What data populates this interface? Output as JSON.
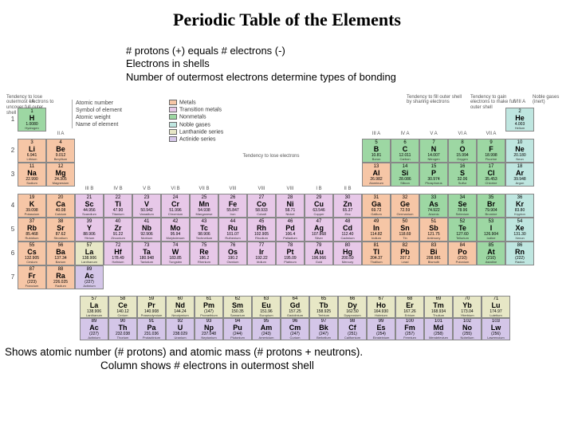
{
  "title": "Periodic Table of the Elements",
  "notes_top": [
    "# protons (+) equals # electrons (-)",
    "Electrons in shells",
    "Number of outermost electrons determine types of bonding"
  ],
  "side_notes": {
    "left": "Tendency to lose outermost electrons to uncover full outer shell",
    "right1": "Tendency to fill outer shell by sharing electrons",
    "right2": "Tendency to gain electrons to make full outer shell",
    "noble": "Noble gases (inert)",
    "mid": "Tendency to lose electrons"
  },
  "element_key_lines": [
    "Atomic number",
    "Symbol of element",
    "Atomic weight",
    "Name of element"
  ],
  "legend": [
    {
      "label": "Metals",
      "color": "#f6c6a6"
    },
    {
      "label": "Transition metals",
      "color": "#e7c8e8"
    },
    {
      "label": "Nonmetals",
      "color": "#9dd7a3"
    },
    {
      "label": "Noble gases",
      "color": "#bfe6e0"
    },
    {
      "label": "Lanthanide series",
      "color": "#e7e7c6"
    },
    {
      "label": "Actinide series",
      "color": "#d4c6e8"
    }
  ],
  "colors": {
    "metal": "#f6c6a6",
    "trans": "#e7c8e8",
    "nonmetal": "#9dd7a3",
    "noble": "#bfe6e0",
    "lanth": "#e7e7c6",
    "act": "#d4c6e8",
    "metal_alt": "#f0b48c",
    "nonmetal_alt": "#b8e2a8",
    "cell_border": "#888888",
    "bg": "#ffffff"
  },
  "group_labels_top": [
    "I A"
  ],
  "group_labels_r1_right": [
    "VIII A"
  ],
  "group_labels_r2": [
    "II A",
    "III A",
    "IV A",
    "V A",
    "VI A",
    "VII A"
  ],
  "group_labels_r4": [
    "III B",
    "IV B",
    "V B",
    "VI B",
    "VII B",
    "VIII",
    "VIII",
    "VIII",
    "I B",
    "II B"
  ],
  "footer": [
    "Shows atomic number (# protons) and atomic mass (# protons + neutrons).",
    "Column shows # electrons in outermost shell"
  ],
  "main_rows": [
    [
      {
        "n": 1,
        "s": "H",
        "w": "1.0080",
        "nm": "Hydrogen",
        "c": "nonmetal"
      },
      null,
      null,
      null,
      null,
      null,
      null,
      null,
      null,
      null,
      null,
      null,
      null,
      null,
      null,
      null,
      null,
      {
        "n": 2,
        "s": "He",
        "w": "4.003",
        "nm": "Helium",
        "c": "noble"
      }
    ],
    [
      {
        "n": 3,
        "s": "Li",
        "w": "6.941",
        "nm": "Lithium",
        "c": "metal"
      },
      {
        "n": 4,
        "s": "Be",
        "w": "9.012",
        "nm": "Beryllium",
        "c": "metal"
      },
      null,
      null,
      null,
      null,
      null,
      null,
      null,
      null,
      null,
      null,
      {
        "n": 5,
        "s": "B",
        "w": "10.81",
        "nm": "Boron",
        "c": "nonmetal"
      },
      {
        "n": 6,
        "s": "C",
        "w": "12.011",
        "nm": "Carbon",
        "c": "nonmetal"
      },
      {
        "n": 7,
        "s": "N",
        "w": "14.007",
        "nm": "Nitrogen",
        "c": "nonmetal"
      },
      {
        "n": 8,
        "s": "O",
        "w": "15.994",
        "nm": "Oxygen",
        "c": "nonmetal"
      },
      {
        "n": 9,
        "s": "F",
        "w": "18.998",
        "nm": "Fluorine",
        "c": "nonmetal"
      },
      {
        "n": 10,
        "s": "Ne",
        "w": "20.180",
        "nm": "Neon",
        "c": "noble"
      }
    ],
    [
      {
        "n": 11,
        "s": "Na",
        "w": "22.990",
        "nm": "Sodium",
        "c": "metal"
      },
      {
        "n": 12,
        "s": "Mg",
        "w": "24.305",
        "nm": "Magnesium",
        "c": "metal"
      },
      null,
      null,
      null,
      null,
      null,
      null,
      null,
      null,
      null,
      null,
      {
        "n": 13,
        "s": "Al",
        "w": "26.982",
        "nm": "Aluminum",
        "c": "metal"
      },
      {
        "n": 14,
        "s": "Si",
        "w": "28.086",
        "nm": "Silicon",
        "c": "nonmetal"
      },
      {
        "n": 15,
        "s": "P",
        "w": "30.974",
        "nm": "Phosphorus",
        "c": "nonmetal"
      },
      {
        "n": 16,
        "s": "S",
        "w": "32.06",
        "nm": "Sulfur",
        "c": "nonmetal"
      },
      {
        "n": 17,
        "s": "Cl",
        "w": "35.453",
        "nm": "Chlorine",
        "c": "nonmetal"
      },
      {
        "n": 18,
        "s": "Ar",
        "w": "39.948",
        "nm": "Argon",
        "c": "noble"
      }
    ],
    [
      {
        "n": 19,
        "s": "K",
        "w": "39.098",
        "nm": "Potassium",
        "c": "metal"
      },
      {
        "n": 20,
        "s": "Ca",
        "w": "40.08",
        "nm": "Calcium",
        "c": "metal"
      },
      {
        "n": 21,
        "s": "Sc",
        "w": "44.956",
        "nm": "Scandium",
        "c": "trans"
      },
      {
        "n": 22,
        "s": "Ti",
        "w": "47.90",
        "nm": "Titanium",
        "c": "trans"
      },
      {
        "n": 23,
        "s": "V",
        "w": "50.942",
        "nm": "Vanadium",
        "c": "trans"
      },
      {
        "n": 24,
        "s": "Cr",
        "w": "51.996",
        "nm": "Chromium",
        "c": "trans"
      },
      {
        "n": 25,
        "s": "Mn",
        "w": "54.938",
        "nm": "Manganese",
        "c": "trans"
      },
      {
        "n": 26,
        "s": "Fe",
        "w": "55.847",
        "nm": "Iron",
        "c": "trans"
      },
      {
        "n": 27,
        "s": "Co",
        "w": "58.933",
        "nm": "Cobalt",
        "c": "trans"
      },
      {
        "n": 28,
        "s": "Ni",
        "w": "58.71",
        "nm": "Nickel",
        "c": "trans"
      },
      {
        "n": 29,
        "s": "Cu",
        "w": "63.546",
        "nm": "Copper",
        "c": "trans"
      },
      {
        "n": 30,
        "s": "Zn",
        "w": "65.37",
        "nm": "Zinc",
        "c": "trans"
      },
      {
        "n": 31,
        "s": "Ga",
        "w": "69.72",
        "nm": "Gallium",
        "c": "metal"
      },
      {
        "n": 32,
        "s": "Ge",
        "w": "72.59",
        "nm": "Germanium",
        "c": "metal"
      },
      {
        "n": 33,
        "s": "As",
        "w": "74.922",
        "nm": "Arsenic",
        "c": "nonmetal"
      },
      {
        "n": 34,
        "s": "Se",
        "w": "78.96",
        "nm": "Selenium",
        "c": "nonmetal"
      },
      {
        "n": 35,
        "s": "Br",
        "w": "79.904",
        "nm": "Bromine",
        "c": "nonmetal"
      },
      {
        "n": 36,
        "s": "Kr",
        "w": "83.80",
        "nm": "Krypton",
        "c": "noble"
      }
    ],
    [
      {
        "n": 37,
        "s": "Rb",
        "w": "85.468",
        "nm": "Rubidium",
        "c": "metal"
      },
      {
        "n": 38,
        "s": "Sr",
        "w": "87.62",
        "nm": "Strontium",
        "c": "metal"
      },
      {
        "n": 39,
        "s": "Y",
        "w": "88.906",
        "nm": "Yttrium",
        "c": "trans"
      },
      {
        "n": 40,
        "s": "Zr",
        "w": "91.22",
        "nm": "Zirconium",
        "c": "trans"
      },
      {
        "n": 41,
        "s": "Nb",
        "w": "92.906",
        "nm": "Niobium",
        "c": "trans"
      },
      {
        "n": 42,
        "s": "Mo",
        "w": "95.94",
        "nm": "Molybdenum",
        "c": "trans"
      },
      {
        "n": 43,
        "s": "Tc",
        "w": "98.906",
        "nm": "Technetium",
        "c": "trans"
      },
      {
        "n": 44,
        "s": "Ru",
        "w": "101.07",
        "nm": "Ruthenium",
        "c": "trans"
      },
      {
        "n": 45,
        "s": "Rh",
        "w": "102.905",
        "nm": "Rhodium",
        "c": "trans"
      },
      {
        "n": 46,
        "s": "Pd",
        "w": "106.4",
        "nm": "Palladium",
        "c": "trans"
      },
      {
        "n": 47,
        "s": "Ag",
        "w": "107.868",
        "nm": "Silver",
        "c": "trans"
      },
      {
        "n": 48,
        "s": "Cd",
        "w": "112.40",
        "nm": "Cadmium",
        "c": "trans"
      },
      {
        "n": 49,
        "s": "In",
        "w": "114.82",
        "nm": "Indium",
        "c": "metal"
      },
      {
        "n": 50,
        "s": "Sn",
        "w": "118.69",
        "nm": "Tin",
        "c": "metal"
      },
      {
        "n": 51,
        "s": "Sb",
        "w": "121.75",
        "nm": "Antimony",
        "c": "metal"
      },
      {
        "n": 52,
        "s": "Te",
        "w": "127.60",
        "nm": "Tellurium",
        "c": "nonmetal"
      },
      {
        "n": 53,
        "s": "I",
        "w": "126.904",
        "nm": "Iodine",
        "c": "nonmetal"
      },
      {
        "n": 54,
        "s": "Xe",
        "w": "131.30",
        "nm": "Xenon",
        "c": "noble"
      }
    ],
    [
      {
        "n": 55,
        "s": "Cs",
        "w": "132.905",
        "nm": "Cesium",
        "c": "metal"
      },
      {
        "n": 56,
        "s": "Ba",
        "w": "137.34",
        "nm": "Barium",
        "c": "metal"
      },
      {
        "n": 57,
        "s": "La",
        "w": "138.906",
        "nm": "Lanthanum",
        "c": "lanth"
      },
      {
        "n": 72,
        "s": "Hf",
        "w": "178.49",
        "nm": "Hafnium",
        "c": "trans"
      },
      {
        "n": 73,
        "s": "Ta",
        "w": "180.948",
        "nm": "Tantalum",
        "c": "trans"
      },
      {
        "n": 74,
        "s": "W",
        "w": "183.85",
        "nm": "Tungsten",
        "c": "trans"
      },
      {
        "n": 75,
        "s": "Re",
        "w": "186.2",
        "nm": "Rhenium",
        "c": "trans"
      },
      {
        "n": 76,
        "s": "Os",
        "w": "190.2",
        "nm": "Osmium",
        "c": "trans"
      },
      {
        "n": 77,
        "s": "Ir",
        "w": "192.22",
        "nm": "Iridium",
        "c": "trans"
      },
      {
        "n": 78,
        "s": "Pt",
        "w": "195.09",
        "nm": "Platinum",
        "c": "trans"
      },
      {
        "n": 79,
        "s": "Au",
        "w": "196.966",
        "nm": "Gold",
        "c": "trans"
      },
      {
        "n": 80,
        "s": "Hg",
        "w": "200.59",
        "nm": "Mercury",
        "c": "trans"
      },
      {
        "n": 81,
        "s": "Tl",
        "w": "204.37",
        "nm": "Thallium",
        "c": "metal"
      },
      {
        "n": 82,
        "s": "Pb",
        "w": "207.2",
        "nm": "Lead",
        "c": "metal"
      },
      {
        "n": 83,
        "s": "Bi",
        "w": "208.981",
        "nm": "Bismuth",
        "c": "metal"
      },
      {
        "n": 84,
        "s": "Po",
        "w": "(210)",
        "nm": "Polonium",
        "c": "metal"
      },
      {
        "n": 85,
        "s": "At",
        "w": "(210)",
        "nm": "Astatine",
        "c": "nonmetal"
      },
      {
        "n": 86,
        "s": "Rn",
        "w": "(222)",
        "nm": "Radon",
        "c": "noble"
      }
    ],
    [
      {
        "n": 87,
        "s": "Fr",
        "w": "(223)",
        "nm": "Francium",
        "c": "metal"
      },
      {
        "n": 88,
        "s": "Ra",
        "w": "226.025",
        "nm": "Radium",
        "c": "metal"
      },
      {
        "n": 89,
        "s": "Ac",
        "w": "(227)",
        "nm": "Actinium",
        "c": "act"
      },
      null,
      null,
      null,
      null,
      null,
      null,
      null,
      null,
      null,
      null,
      null,
      null,
      null,
      null,
      null
    ]
  ],
  "lanth_row": [
    {
      "n": 57,
      "s": "La",
      "w": "138.906",
      "nm": "Lanthanum",
      "c": "lanth"
    },
    {
      "n": 58,
      "s": "Ce",
      "w": "140.12",
      "nm": "Cerium",
      "c": "lanth"
    },
    {
      "n": 59,
      "s": "Pr",
      "w": "140.908",
      "nm": "Praseodymium",
      "c": "lanth"
    },
    {
      "n": 60,
      "s": "Nd",
      "w": "144.24",
      "nm": "Neodymium",
      "c": "lanth"
    },
    {
      "n": 61,
      "s": "Pm",
      "w": "(147)",
      "nm": "Promethium",
      "c": "lanth"
    },
    {
      "n": 62,
      "s": "Sm",
      "w": "150.35",
      "nm": "Samarium",
      "c": "lanth"
    },
    {
      "n": 63,
      "s": "Eu",
      "w": "151.96",
      "nm": "Europium",
      "c": "lanth"
    },
    {
      "n": 64,
      "s": "Gd",
      "w": "157.25",
      "nm": "Gadolinium",
      "c": "lanth"
    },
    {
      "n": 65,
      "s": "Tb",
      "w": "158.925",
      "nm": "Terbium",
      "c": "lanth"
    },
    {
      "n": 66,
      "s": "Dy",
      "w": "162.50",
      "nm": "Dysprosium",
      "c": "lanth"
    },
    {
      "n": 67,
      "s": "Ho",
      "w": "164.930",
      "nm": "Holmium",
      "c": "lanth"
    },
    {
      "n": 68,
      "s": "Er",
      "w": "167.26",
      "nm": "Erbium",
      "c": "lanth"
    },
    {
      "n": 69,
      "s": "Tm",
      "w": "168.934",
      "nm": "Thulium",
      "c": "lanth"
    },
    {
      "n": 70,
      "s": "Yb",
      "w": "173.04",
      "nm": "Ytterbium",
      "c": "lanth"
    },
    {
      "n": 71,
      "s": "Lu",
      "w": "174.97",
      "nm": "Lutetium",
      "c": "lanth"
    }
  ],
  "act_row": [
    {
      "n": 89,
      "s": "Ac",
      "w": "(227)",
      "nm": "Actinium",
      "c": "act"
    },
    {
      "n": 90,
      "s": "Th",
      "w": "232.038",
      "nm": "Thorium",
      "c": "act"
    },
    {
      "n": 91,
      "s": "Pa",
      "w": "231.036",
      "nm": "Protactinium",
      "c": "act"
    },
    {
      "n": 92,
      "s": "U",
      "w": "238.029",
      "nm": "Uranium",
      "c": "act"
    },
    {
      "n": 93,
      "s": "Np",
      "w": "237.048",
      "nm": "Neptunium",
      "c": "act"
    },
    {
      "n": 94,
      "s": "Pu",
      "w": "(244)",
      "nm": "Plutonium",
      "c": "act"
    },
    {
      "n": 95,
      "s": "Am",
      "w": "(243)",
      "nm": "Americium",
      "c": "act"
    },
    {
      "n": 96,
      "s": "Cm",
      "w": "(247)",
      "nm": "Curium",
      "c": "act"
    },
    {
      "n": 97,
      "s": "Bk",
      "w": "(247)",
      "nm": "Berkelium",
      "c": "act"
    },
    {
      "n": 98,
      "s": "Cf",
      "w": "(251)",
      "nm": "Californium",
      "c": "act"
    },
    {
      "n": 99,
      "s": "Es",
      "w": "(254)",
      "nm": "Einsteinium",
      "c": "act"
    },
    {
      "n": 100,
      "s": "Fm",
      "w": "(257)",
      "nm": "Fermium",
      "c": "act"
    },
    {
      "n": 101,
      "s": "Md",
      "w": "(258)",
      "nm": "Mendelevium",
      "c": "act"
    },
    {
      "n": 102,
      "s": "No",
      "w": "(255)",
      "nm": "Nobelium",
      "c": "act"
    },
    {
      "n": 103,
      "s": "Lw",
      "w": "(256)",
      "nm": "Lawrencium",
      "c": "act"
    }
  ]
}
